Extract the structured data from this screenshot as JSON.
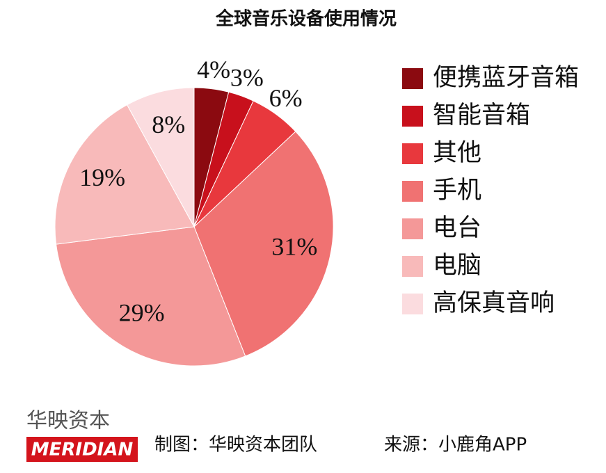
{
  "chart_data": {
    "type": "pie",
    "title": "全球音乐设备使用情况",
    "categories": [
      "便携蓝牙音箱",
      "智能音箱",
      "其他",
      "手机",
      "电台",
      "电脑",
      "高保真音响"
    ],
    "values": [
      4,
      3,
      6,
      31,
      29,
      19,
      8
    ],
    "value_labels": [
      "4%",
      "3%",
      "6%",
      "31%",
      "29%",
      "19%",
      "8%"
    ],
    "colors": [
      "#8b0a10",
      "#c8101c",
      "#e8383d",
      "#f07272",
      "#f49898",
      "#f8baba",
      "#fbdcdf"
    ],
    "legend": "right"
  },
  "footer": {
    "logo_text": "华映资本",
    "logo_brand": "MERIDIAN",
    "credit": "制图：华映资本团队",
    "source": "来源：小鹿角APP"
  }
}
